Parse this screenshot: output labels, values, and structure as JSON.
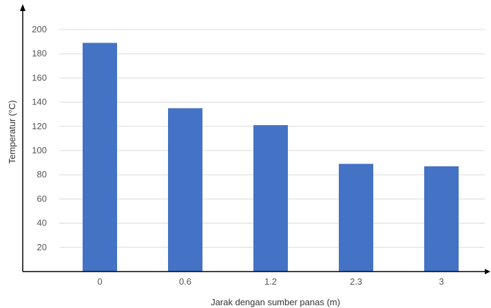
{
  "chart_data": {
    "type": "bar",
    "title": "",
    "xlabel": "Jarak dengan sumber panas (m)",
    "ylabel": "Temperatur (°C)",
    "categories": [
      "0",
      "0.6",
      "1.2",
      "2.3",
      "3"
    ],
    "values": [
      189,
      135,
      121,
      89,
      87
    ],
    "ylim": [
      0,
      200
    ],
    "yticks": [
      20,
      40,
      60,
      80,
      100,
      120,
      140,
      160,
      180,
      200
    ],
    "grid": true,
    "bar_color": "#4472C4",
    "grid_color": "#d9d9d9",
    "axis_color": "#000000"
  }
}
